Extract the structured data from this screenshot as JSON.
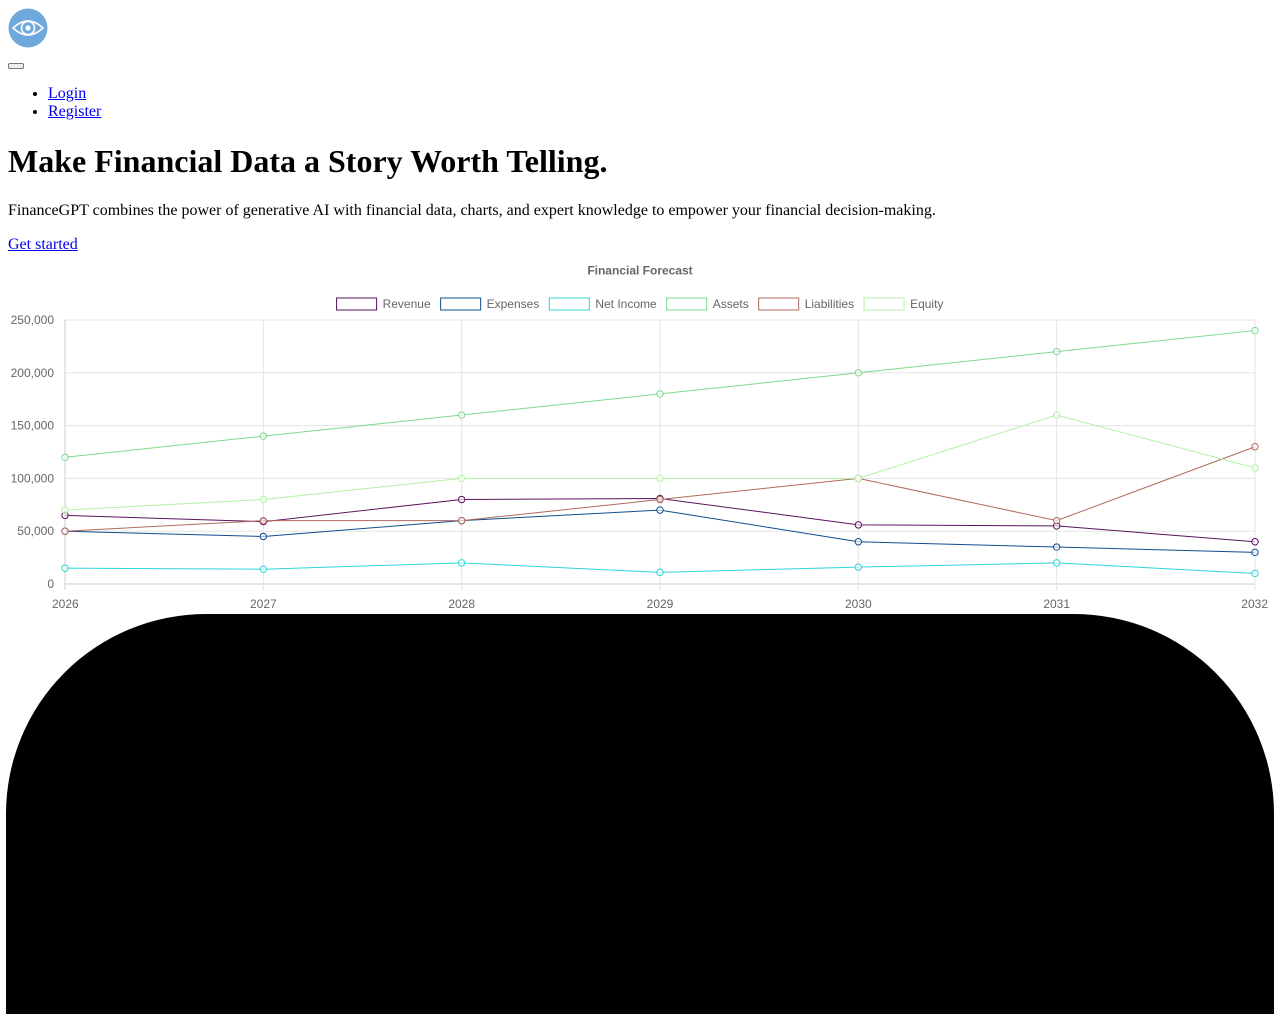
{
  "header": {
    "logo_icon": "eye-logo-icon",
    "logo_colors": {
      "outer": "#6fa9dc",
      "inner": "#ffffff"
    },
    "menu_toggle_icon": "hamburger-menu-icon"
  },
  "nav": {
    "items": [
      {
        "label": "Login"
      },
      {
        "label": "Register"
      }
    ]
  },
  "hero": {
    "title": "Make Financial Data a Story Worth Telling.",
    "description": "FinanceGPT combines the power of generative AI with financial data, charts, and expert knowledge to empower your financial decision-making.",
    "cta_label": "Get started"
  },
  "chart_data": {
    "type": "line",
    "title": "Financial Forecast",
    "x": [
      "2026",
      "2027",
      "2028",
      "2029",
      "2030",
      "2031",
      "2032"
    ],
    "ylim": [
      0,
      250000
    ],
    "yticks": [
      0,
      50000,
      100000,
      150000,
      200000,
      250000
    ],
    "ytick_labels": [
      "0",
      "50,000",
      "100,000",
      "150,000",
      "200,000",
      "250,000"
    ],
    "grid": true,
    "legend_position": "top-center",
    "series": [
      {
        "name": "Revenue",
        "color": "#5a1260",
        "values": [
          65000,
          59000,
          80000,
          81000,
          56000,
          55000,
          40000
        ]
      },
      {
        "name": "Expenses",
        "color": "#124c8f",
        "values": [
          50000,
          45000,
          60000,
          70000,
          40000,
          35000,
          30000
        ]
      },
      {
        "name": "Net Income",
        "color": "#2dd4da",
        "values": [
          15000,
          14000,
          20000,
          11000,
          16000,
          20000,
          10000
        ]
      },
      {
        "name": "Assets",
        "color": "#7cd98a",
        "values": [
          120000,
          140000,
          160000,
          180000,
          200000,
          220000,
          240000
        ]
      },
      {
        "name": "Liabilities",
        "color": "#b06a5e",
        "values": [
          50000,
          60000,
          60000,
          80000,
          100000,
          60000,
          130000
        ]
      },
      {
        "name": "Equity",
        "color": "#b4f2a6",
        "values": [
          70000,
          80000,
          100000,
          100000,
          100000,
          160000,
          110000
        ]
      }
    ]
  }
}
